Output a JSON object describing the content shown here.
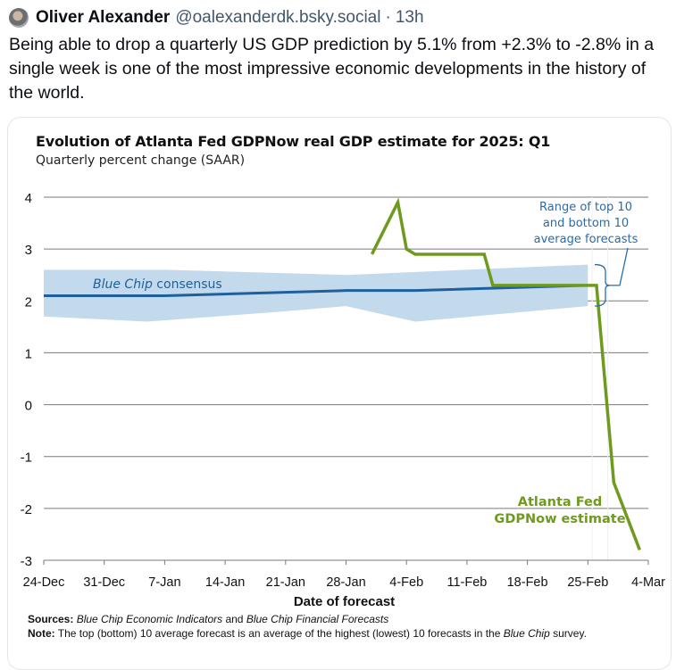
{
  "post": {
    "author_name": "Oliver Alexander",
    "author_handle": "@oalexanderdk.bsky.social",
    "separator": "·",
    "time_ago": "13h",
    "text": "Being able to drop a quarterly US GDP prediction by 5.1% from +2.3% to -2.8% in a single week is one of the most impressive economic developments in the history of the world."
  },
  "chart_data": {
    "type": "line",
    "title": "Evolution of Atlanta Fed GDPNow real GDP estimate for 2025: Q1",
    "subtitle": "Quarterly percent change (SAAR)",
    "xlabel": "Date of forecast",
    "ylabel": "",
    "ylim": [
      -3,
      4
    ],
    "yticks": [
      4,
      3,
      2,
      1,
      0,
      -1,
      -2,
      -3
    ],
    "x_range_days": [
      0,
      70
    ],
    "x_origin": "24-Dec",
    "xticks": [
      {
        "day": 0,
        "label": "24-Dec"
      },
      {
        "day": 7,
        "label": "31-Dec"
      },
      {
        "day": 14,
        "label": "7-Jan"
      },
      {
        "day": 21,
        "label": "14-Jan"
      },
      {
        "day": 28,
        "label": "21-Jan"
      },
      {
        "day": 35,
        "label": "28-Jan"
      },
      {
        "day": 42,
        "label": "4-Feb"
      },
      {
        "day": 49,
        "label": "11-Feb"
      },
      {
        "day": 56,
        "label": "18-Feb"
      },
      {
        "day": 63,
        "label": "25-Feb"
      },
      {
        "day": 70,
        "label": "4-Mar"
      }
    ],
    "grid": true,
    "series": [
      {
        "name": "Blue Chip consensus",
        "label_italic": "Blue Chip",
        "label_rest": " consensus",
        "color": "#1f5f9e",
        "points": [
          [
            0,
            2.1
          ],
          [
            14,
            2.1
          ],
          [
            35,
            2.2
          ],
          [
            43,
            2.2
          ],
          [
            63,
            2.3
          ]
        ]
      },
      {
        "name": "Atlanta Fed GDPNow estimate",
        "label_line1": "Atlanta Fed",
        "label_line2": "GDPNow estimate",
        "color": "#6e9a1e",
        "points": [
          [
            38,
            2.9
          ],
          [
            41,
            3.9
          ],
          [
            42,
            3.0
          ],
          [
            43,
            2.9
          ],
          [
            51,
            2.9
          ],
          [
            52,
            2.3
          ],
          [
            64,
            2.3
          ],
          [
            66,
            -1.5
          ],
          [
            69,
            -2.8
          ]
        ]
      }
    ],
    "range_band": {
      "name": "Range of top 10 and bottom 10 average forecasts",
      "color": "#c3d9ec",
      "upper": [
        [
          0,
          2.6
        ],
        [
          14,
          2.6
        ],
        [
          35,
          2.5
        ],
        [
          63,
          2.7
        ]
      ],
      "lower": [
        [
          0,
          1.7
        ],
        [
          12,
          1.6
        ],
        [
          28,
          1.8
        ],
        [
          35,
          1.9
        ],
        [
          43,
          1.6
        ],
        [
          63,
          1.9
        ]
      ]
    },
    "annotations": {
      "range_label": [
        "Range of top 10",
        "and bottom 10",
        "average forecasts"
      ],
      "annotation_color": "#2a6ba8"
    }
  },
  "footer": {
    "sources_label": "Sources:",
    "sources_italic_1": "Blue Chip Economic Indicators",
    "sources_and": " and ",
    "sources_italic_2": "Blue Chip Financial Forecasts",
    "note_label": "Note:",
    "note_text": " The top (bottom) 10 average forecast is an average of the highest (lowest) 10 forecasts in the ",
    "note_italic": "Blue Chip",
    "note_end": "survey."
  }
}
